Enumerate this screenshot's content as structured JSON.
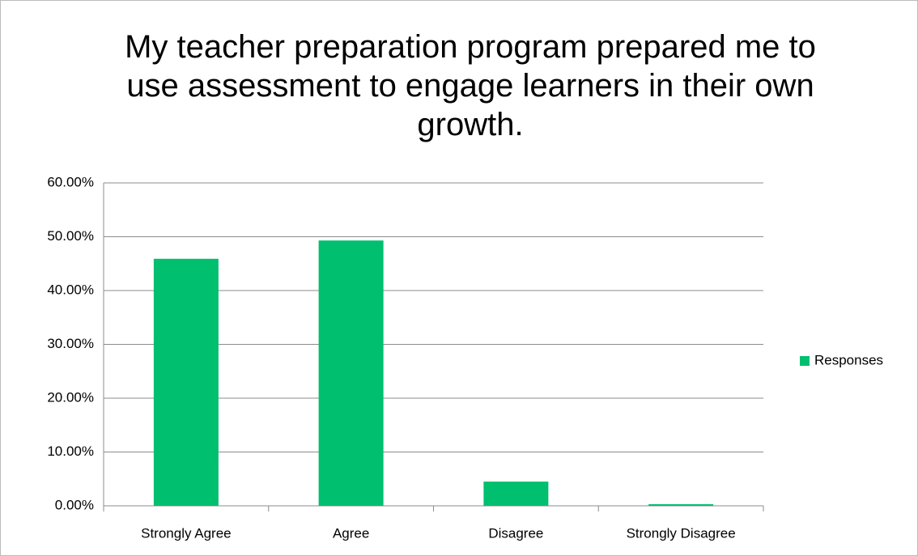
{
  "chart_data": {
    "type": "bar",
    "title": "My teacher preparation program prepared me to use assessment to engage learners in their own growth.",
    "categories": [
      "Strongly Agree",
      "Agree",
      "Disagree",
      "Strongly Disagree"
    ],
    "series": [
      {
        "name": "Responses",
        "color": "#00bf6f",
        "values": [
          45.9,
          49.3,
          4.5,
          0.3
        ]
      }
    ],
    "ylim": [
      0,
      60
    ],
    "yticks": [
      {
        "value": 0,
        "label": "0.00%"
      },
      {
        "value": 10,
        "label": "10.00%"
      },
      {
        "value": 20,
        "label": "20.00%"
      },
      {
        "value": 30,
        "label": "30.00%"
      },
      {
        "value": 40,
        "label": "40.00%"
      },
      {
        "value": 50,
        "label": "50.00%"
      },
      {
        "value": 60,
        "label": "60.00%"
      }
    ],
    "grid": true,
    "legend": "right"
  }
}
